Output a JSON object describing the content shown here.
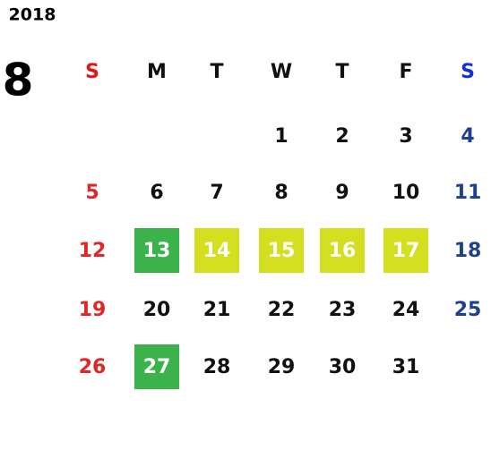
{
  "header": {
    "year": "2018",
    "month": "8"
  },
  "weekdays": [
    "S",
    "M",
    "T",
    "W",
    "T",
    "F",
    "S"
  ],
  "weeks": [
    [
      null,
      null,
      null,
      1,
      2,
      3,
      4
    ],
    [
      5,
      6,
      7,
      8,
      9,
      10,
      11
    ],
    [
      12,
      13,
      14,
      15,
      16,
      17,
      18
    ],
    [
      19,
      20,
      21,
      22,
      23,
      24,
      25
    ],
    [
      26,
      27,
      28,
      29,
      30,
      31,
      null
    ]
  ]
}
